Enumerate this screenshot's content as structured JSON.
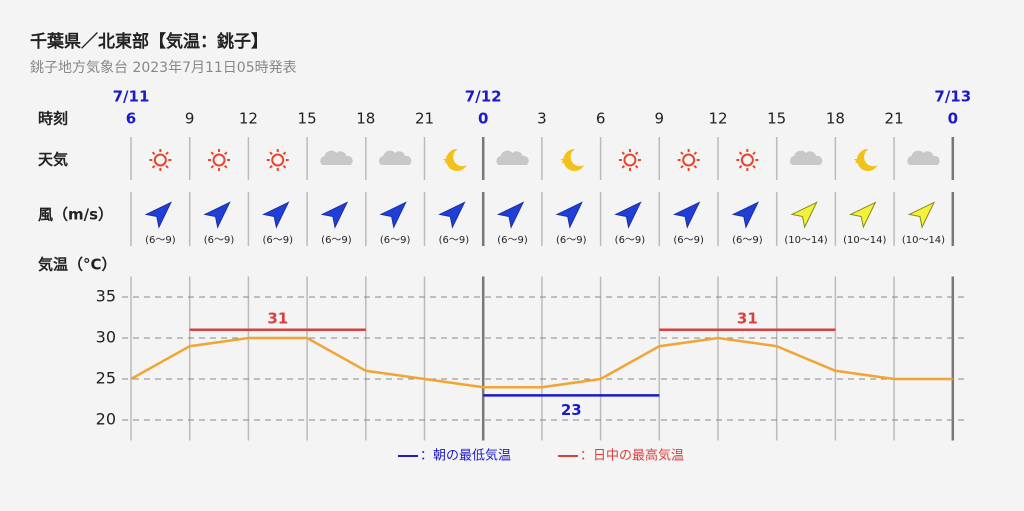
{
  "header": {
    "title": "千葉県／北東部【気温：銚子】",
    "subtitle": "銚子地方気象台 2023年7月11日05時発表"
  },
  "row_labels": {
    "time": "時刻",
    "weather": "天気",
    "wind": "風（m/s）"
  },
  "dates": [
    "7/11",
    null,
    null,
    null,
    null,
    null,
    "7/12",
    null,
    null,
    null,
    null,
    null,
    null,
    null,
    "7/13"
  ],
  "weather": [
    "sunny",
    "sunny",
    "sunny",
    "cloudy",
    "cloudy",
    "moon",
    "cloudy",
    "moon",
    "sunny",
    "sunny",
    "sunny",
    "cloudy",
    "moon",
    "cloudy"
  ],
  "wind": [
    {
      "range": "(6〜9)",
      "color": "#1f3fd8"
    },
    {
      "range": "(6〜9)",
      "color": "#1f3fd8"
    },
    {
      "range": "(6〜9)",
      "color": "#1f3fd8"
    },
    {
      "range": "(6〜9)",
      "color": "#1f3fd8"
    },
    {
      "range": "(6〜9)",
      "color": "#1f3fd8"
    },
    {
      "range": "(6〜9)",
      "color": "#1f3fd8"
    },
    {
      "range": "(6〜9)",
      "color": "#1f3fd8"
    },
    {
      "range": "(6〜9)",
      "color": "#1f3fd8"
    },
    {
      "range": "(6〜9)",
      "color": "#1f3fd8"
    },
    {
      "range": "(6〜9)",
      "color": "#1f3fd8"
    },
    {
      "range": "(6〜9)",
      "color": "#1f3fd8"
    },
    {
      "range": "(10〜14)",
      "color": "#f2f23a"
    },
    {
      "range": "(10〜14)",
      "color": "#f2f23a"
    },
    {
      "range": "(10〜14)",
      "color": "#f2f23a"
    }
  ],
  "chart_data": {
    "type": "line",
    "y_label": "気温（°C）",
    "categories": [
      "6",
      "9",
      "12",
      "15",
      "18",
      "21",
      "0",
      "3",
      "6",
      "9",
      "12",
      "15",
      "18",
      "21",
      "0"
    ],
    "values": [
      25,
      29,
      30,
      30,
      26,
      25,
      24,
      24,
      25,
      29,
      30,
      29,
      26,
      25,
      25
    ],
    "color": "#f0a535",
    "ylim": [
      17.5,
      37.5
    ],
    "yticks": [
      20,
      25,
      30,
      35
    ],
    "grid": true,
    "max_temps": [
      {
        "from": 1,
        "to": 4,
        "value": 31
      },
      {
        "from": 9,
        "to": 12,
        "value": 31
      }
    ],
    "min_temps": [
      {
        "from": 6,
        "to": 9,
        "value": 23
      }
    ],
    "max_color": "#d94040",
    "min_color": "#1a1acc",
    "legend": {
      "min": "：朝の最低気温",
      "max": "：日中の最高気温"
    }
  }
}
